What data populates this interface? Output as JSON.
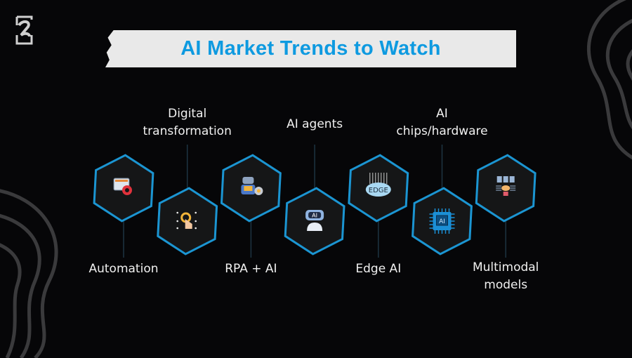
{
  "title": "AI Market Trends to Watch",
  "colors": {
    "background": "#060608",
    "banner": "#e9e9e9",
    "title": "#0e9ae0",
    "hex_fill": "#151617",
    "hex_stroke": "#1b95d2",
    "connector": "#1d3442"
  },
  "trends": [
    {
      "label": "Automation",
      "label_position": "bottom",
      "icon": "monitor-gear-icon"
    },
    {
      "label": "Digital\ntransformation",
      "label_position": "top",
      "icon": "touch-gear-icon"
    },
    {
      "label": "RPA + AI",
      "label_position": "bottom",
      "icon": "robot-gear-icon"
    },
    {
      "label": "AI agents",
      "label_position": "top",
      "icon": "ai-robot-icon",
      "icon_text": "AI"
    },
    {
      "label": "Edge AI",
      "label_position": "bottom",
      "icon": "edge-cloud-icon",
      "icon_text": "EDGE"
    },
    {
      "label": "AI\nchips/hardware",
      "label_position": "top",
      "icon": "ai-chip-icon",
      "icon_text": "AI"
    },
    {
      "label": "Multimodal\nmodels",
      "label_position": "bottom",
      "icon": "documents-brain-icon"
    }
  ]
}
